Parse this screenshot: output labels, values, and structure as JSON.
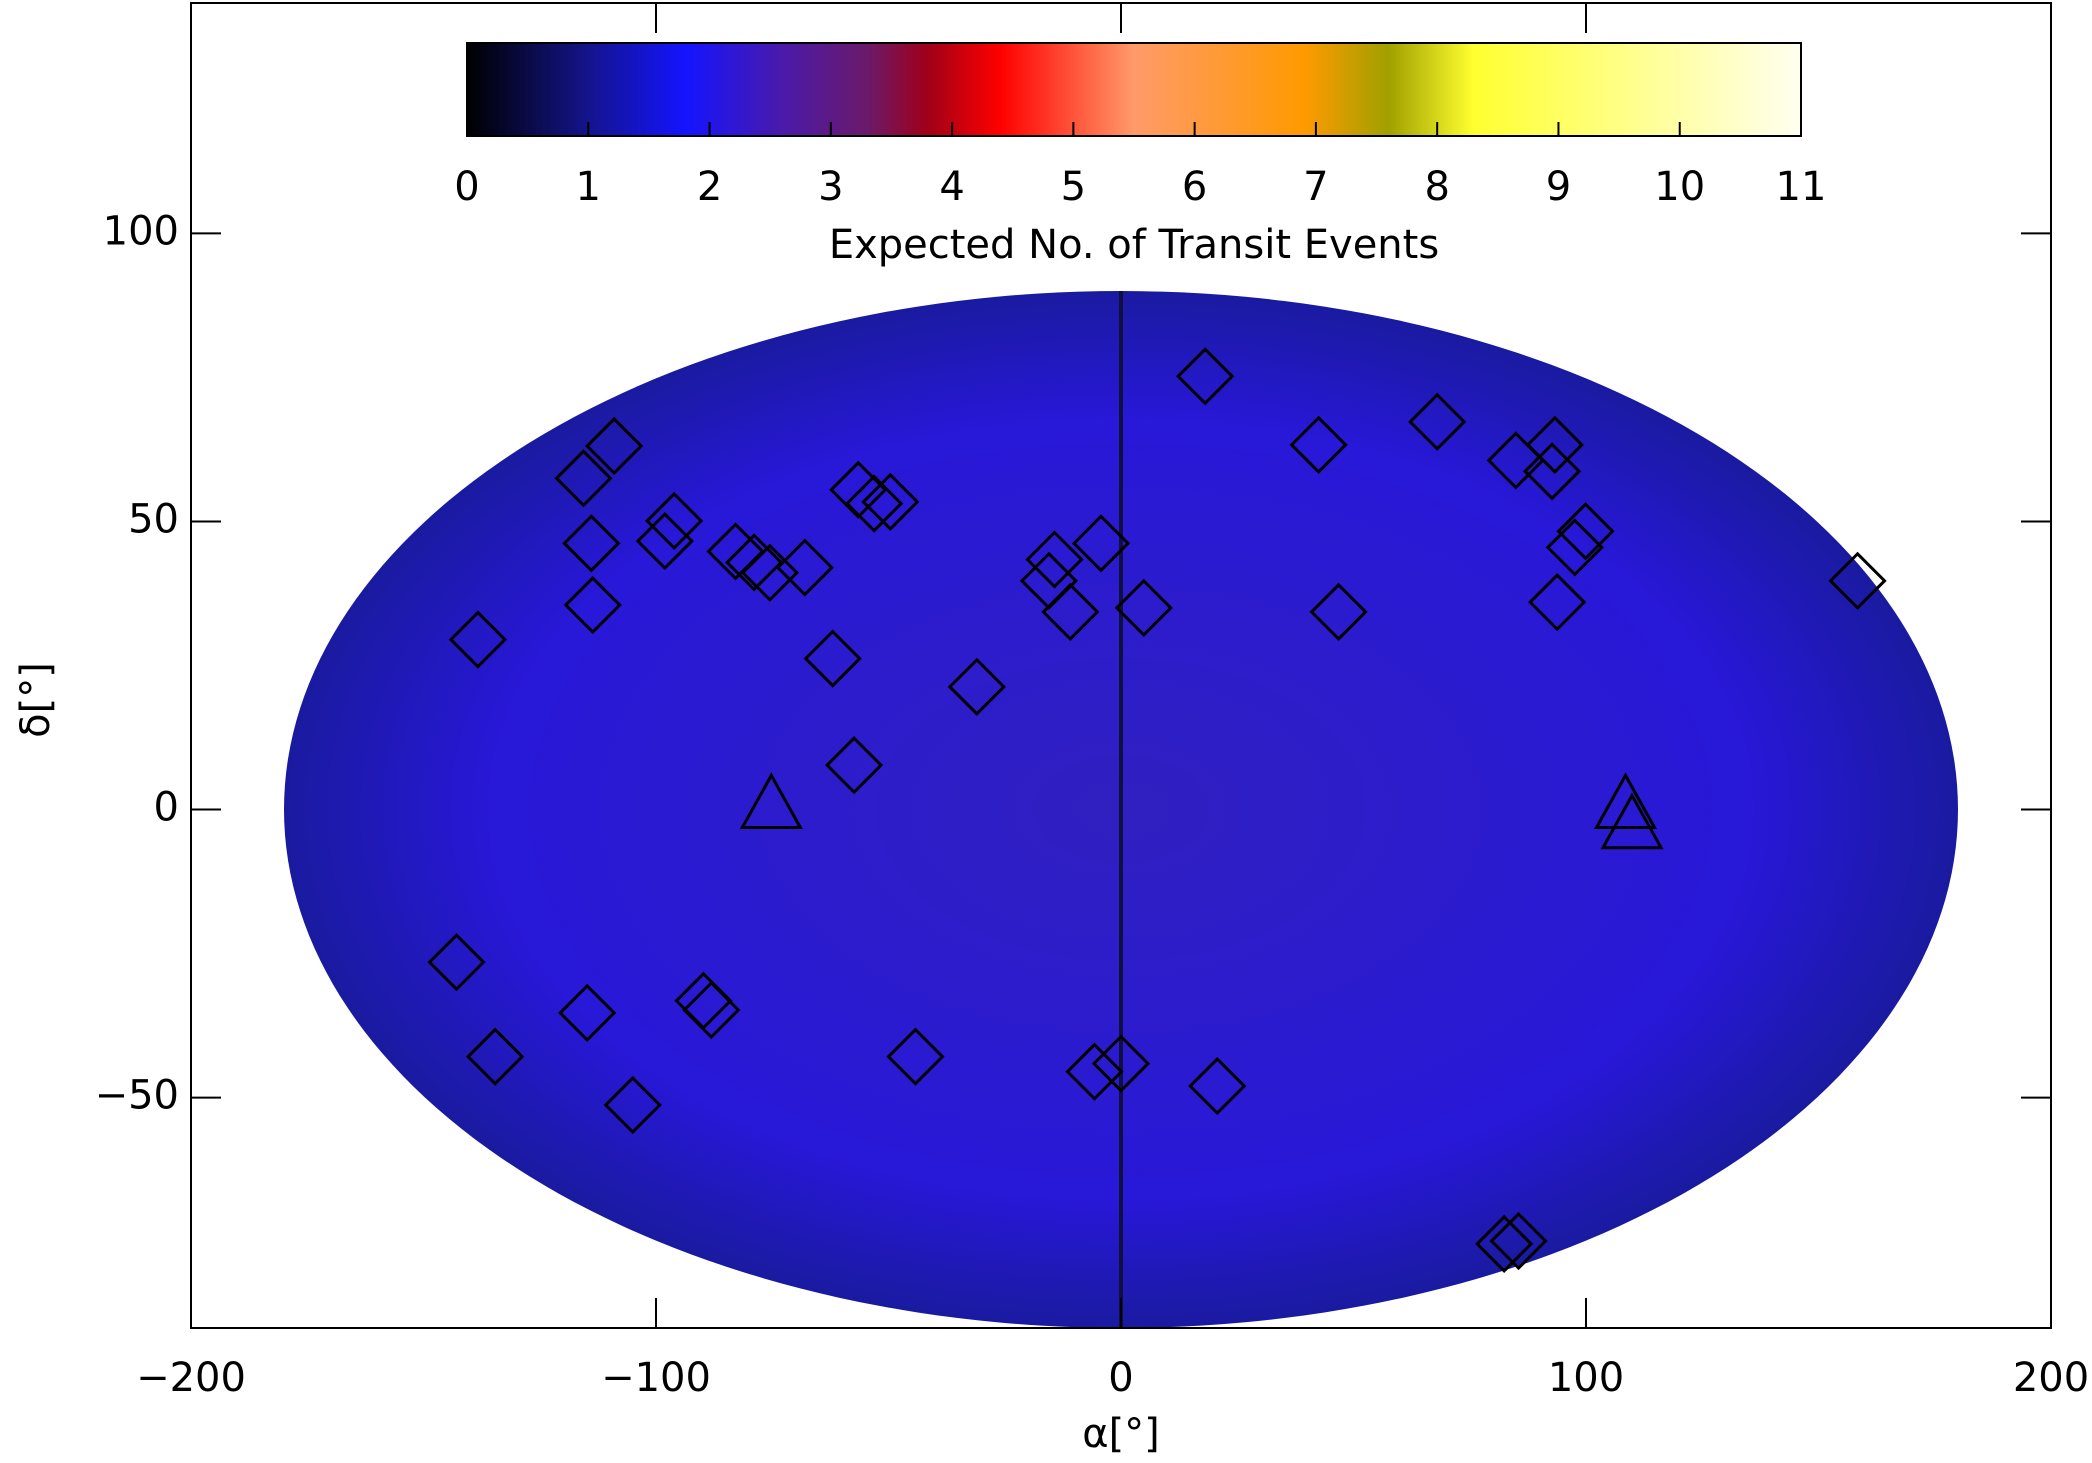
{
  "chart_data": {
    "type": "scatter",
    "xlabel": "α[°]",
    "ylabel": "δ[°]",
    "xlim": [
      -200,
      200
    ],
    "ylim": [
      -90,
      140
    ],
    "xticks": [
      {
        "value": -200,
        "label": "−200"
      },
      {
        "value": -100,
        "label": "−100"
      },
      0,
      100,
      200
    ],
    "yticks": [
      {
        "value": -50,
        "label": "−50"
      },
      0,
      50,
      100
    ],
    "colorbar": {
      "label": "Expected No. of Transit Events",
      "lim": [
        0,
        11
      ],
      "ticks": [
        0,
        1,
        2,
        3,
        4,
        5,
        6,
        7,
        8,
        9,
        10,
        11
      ],
      "stops": [
        {
          "value": 0,
          "color": "#000000"
        },
        {
          "value": 1,
          "color": "#14148c"
        },
        {
          "value": 1.8,
          "color": "#1414ff"
        },
        {
          "value": 2.6,
          "color": "#4a1aaa"
        },
        {
          "value": 3.3,
          "color": "#6a1a6a"
        },
        {
          "value": 3.8,
          "color": "#a00018"
        },
        {
          "value": 4.4,
          "color": "#ff0000"
        },
        {
          "value": 5.5,
          "color": "#ff9a6a"
        },
        {
          "value": 6.9,
          "color": "#ff9a00"
        },
        {
          "value": 7.6,
          "color": "#a0a000"
        },
        {
          "value": 8.3,
          "color": "#ffff30"
        },
        {
          "value": 11,
          "color": "#fffff0"
        }
      ]
    },
    "series": [
      {
        "marker": "diamond",
        "color": "#000000",
        "x": [
          18.1,
          42.5,
          68.0,
          84.9,
          93.3,
          92.7,
          99.9,
          97.6,
          93.8,
          46.8,
          4.9,
          -4.3,
          -14.3,
          -15.5,
          -10.9,
          -31.0,
          -62.0,
          -57.4,
          -68.0,
          -75.5,
          -78.9,
          -82.9,
          -56.5,
          -53.1,
          -49.6,
          -109.0,
          -115.6,
          -113.9,
          -113.6,
          -96.1,
          -98.1,
          -138.3,
          -142.9,
          -134.6,
          -114.8,
          -105.0,
          -89.8,
          -88.1,
          -44.2,
          -5.7,
          0.0,
          20.7,
          82.4,
          85.5,
          158.4
        ],
        "y": [
          75.2,
          63.3,
          67.3,
          60.6,
          63.3,
          58.7,
          48.3,
          45.5,
          36.0,
          34.3,
          35.0,
          46.2,
          43.4,
          39.7,
          34.3,
          21.3,
          26.2,
          7.7,
          42.0,
          41.1,
          42.9,
          44.8,
          55.5,
          53.1,
          53.4,
          63.1,
          57.5,
          46.2,
          35.5,
          50.1,
          46.6,
          29.5,
          -26.5,
          -42.9,
          -35.3,
          -51.3,
          -33.2,
          -34.8,
          -42.9,
          -45.5,
          -44.1,
          -48.0,
          -75.4,
          -74.9,
          39.7
        ]
      },
      {
        "marker": "triangle",
        "color": "#000000",
        "x": [
          -75.2,
          108.5,
          109.9
        ],
        "y": [
          0.9,
          0.9,
          -2.6
        ]
      }
    ]
  }
}
